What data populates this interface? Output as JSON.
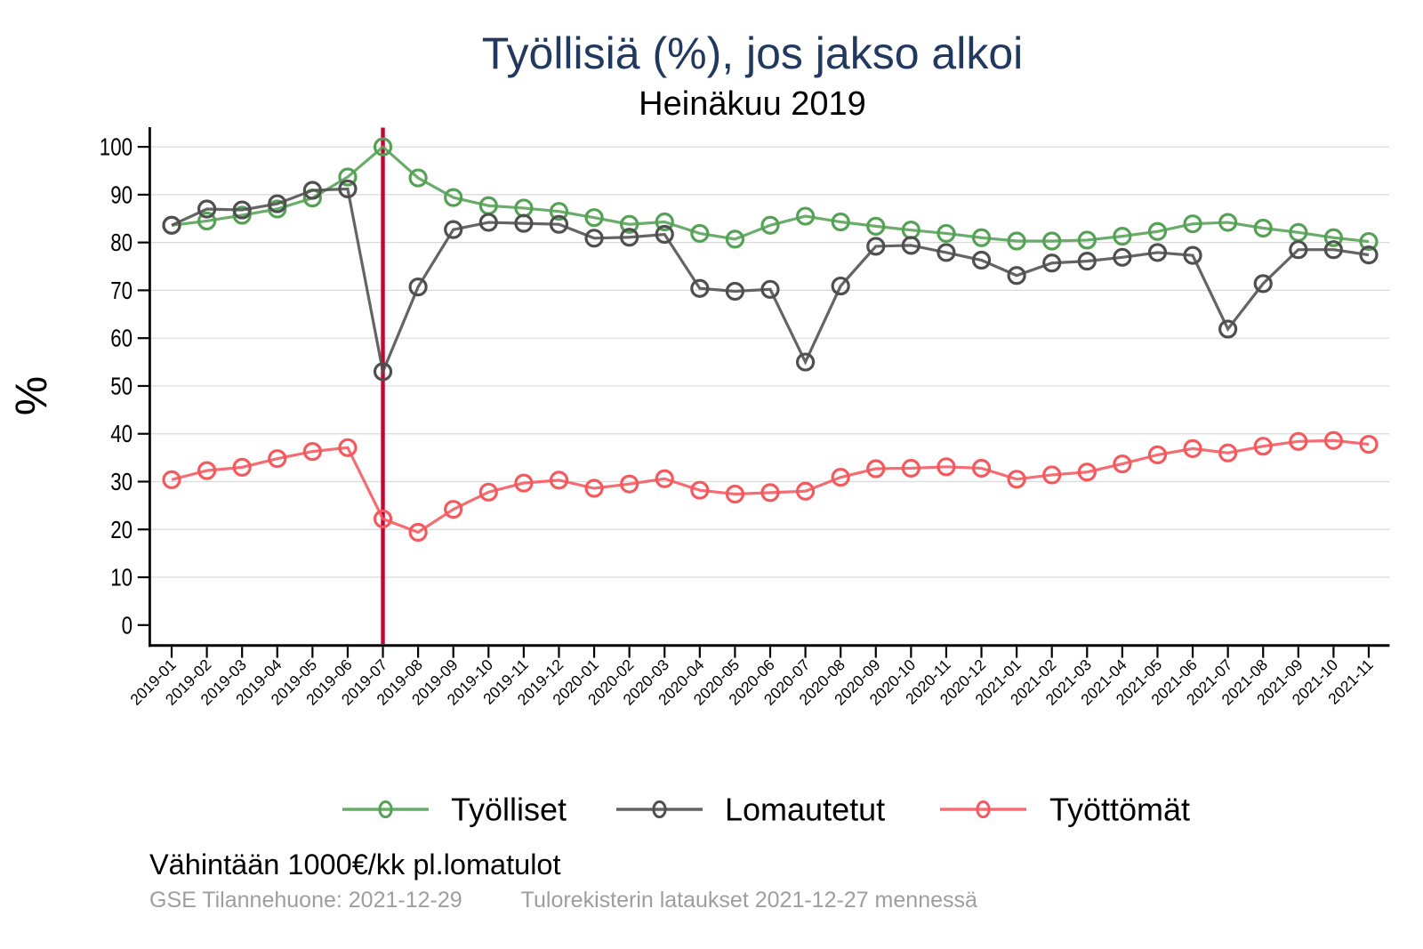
{
  "title": {
    "text": "Työllisiä (%), jos jakso alkoi",
    "color": "#21395f"
  },
  "subtitle": "Heinäkuu 2019",
  "y_axis_title": "%",
  "note": "Vähintään 1000€/kk pl.lomatulot",
  "captions": {
    "left": "GSE Tilannehuone: 2021-12-29",
    "right": "Tulorekisterin lataukset 2021-12-27 mennessä"
  },
  "chart_data": {
    "type": "line",
    "x": [
      "2019-01",
      "2019-02",
      "2019-03",
      "2019-04",
      "2019-05",
      "2019-06",
      "2019-07",
      "2019-08",
      "2019-09",
      "2019-10",
      "2019-11",
      "2019-12",
      "2020-01",
      "2020-02",
      "2020-03",
      "2020-04",
      "2020-05",
      "2020-06",
      "2020-07",
      "2020-08",
      "2020-09",
      "2020-10",
      "2020-11",
      "2020-12",
      "2021-01",
      "2021-02",
      "2021-03",
      "2021-04",
      "2021-05",
      "2021-06",
      "2021-07",
      "2021-08",
      "2021-09",
      "2021-10",
      "2021-11"
    ],
    "series": [
      {
        "name": "Työlliset",
        "color": "#55a155",
        "values": [
          83.6,
          84.5,
          85.7,
          87.0,
          89.3,
          93.7,
          100,
          93.5,
          89.4,
          87.7,
          87.2,
          86.5,
          85.2,
          83.8,
          84.3,
          81.9,
          80.7,
          83.6,
          85.5,
          84.3,
          83.4,
          82.6,
          81.9,
          81.0,
          80.3,
          80.3,
          80.5,
          81.3,
          82.3,
          83.9,
          84.2,
          83.0,
          82.1,
          81.0,
          80.2
        ]
      },
      {
        "name": "Lomautetut",
        "color": "#4f4f4f",
        "values": [
          83.6,
          87.0,
          86.8,
          88.1,
          90.9,
          91.2,
          53.0,
          70.7,
          82.7,
          84.2,
          84.0,
          83.8,
          80.9,
          81.1,
          81.7,
          70.4,
          69.8,
          70.2,
          55.0,
          70.9,
          79.2,
          79.4,
          77.9,
          76.3,
          73.1,
          75.7,
          76.1,
          76.9,
          77.9,
          77.3,
          61.9,
          71.4,
          78.5,
          78.5,
          77.4
        ]
      },
      {
        "name": "Työttömät",
        "color": "#f4595e",
        "values": [
          30.4,
          32.3,
          33.0,
          34.8,
          36.3,
          37.1,
          22.2,
          19.4,
          24.2,
          27.8,
          29.7,
          30.3,
          28.6,
          29.5,
          30.6,
          28.2,
          27.4,
          27.7,
          28.0,
          30.9,
          32.7,
          32.8,
          33.1,
          32.8,
          30.5,
          31.4,
          32.0,
          33.7,
          35.6,
          36.9,
          36.0,
          37.4,
          38.4,
          38.6,
          37.8
        ]
      }
    ],
    "ylim": [
      0,
      100
    ],
    "yticks": [
      0,
      10,
      20,
      30,
      40,
      50,
      60,
      70,
      80,
      90,
      100
    ],
    "grid": true,
    "legend_position": "bottom",
    "marker": "open-circle",
    "reference_vline": {
      "x": "2019-07",
      "color": "#c10534"
    }
  }
}
